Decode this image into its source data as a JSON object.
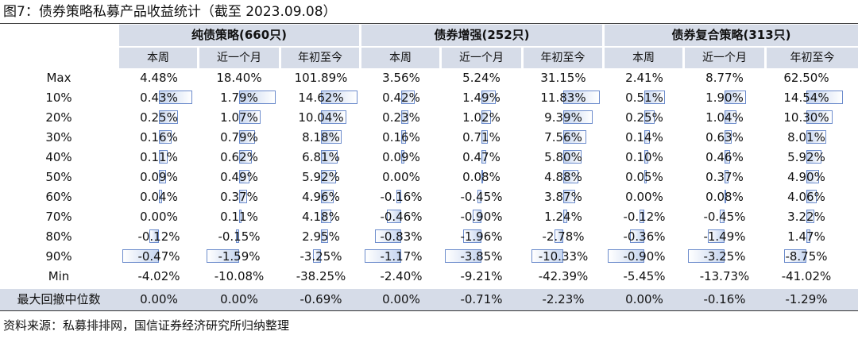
{
  "title": "图7：债券策略私募产品收益统计（截至 2023.09.08）",
  "groups": [
    {
      "label": "纯债策略(660只)"
    },
    {
      "label": "债券增强(252只)"
    },
    {
      "label": "债券复合策略(313只)"
    }
  ],
  "subheaders": [
    "本周",
    "近一个月",
    "年初至今",
    "本周",
    "近一个月",
    "年初至今",
    "本周",
    "近一个月",
    "年初至今"
  ],
  "rows": [
    {
      "label": "Max",
      "bars": false,
      "values": [
        "4.48%",
        "18.40%",
        "101.89%",
        "3.56%",
        "5.24%",
        "31.15%",
        "2.41%",
        "8.77%",
        "62.50%"
      ]
    },
    {
      "label": "10%",
      "bars": true,
      "values": [
        "0.43%",
        "1.79%",
        "14.62%",
        "0.42%",
        "1.49%",
        "11.83%",
        "0.51%",
        "1.90%",
        "14.54%"
      ]
    },
    {
      "label": "20%",
      "bars": true,
      "values": [
        "0.25%",
        "1.07%",
        "10.04%",
        "0.23%",
        "1.02%",
        "9.39%",
        "0.25%",
        "1.04%",
        "10.30%"
      ]
    },
    {
      "label": "30%",
      "bars": true,
      "values": [
        "0.16%",
        "0.79%",
        "8.18%",
        "0.16%",
        "0.71%",
        "7.56%",
        "0.14%",
        "0.63%",
        "8.01%"
      ]
    },
    {
      "label": "40%",
      "bars": true,
      "values": [
        "0.11%",
        "0.62%",
        "6.81%",
        "0.09%",
        "0.47%",
        "5.80%",
        "0.10%",
        "0.46%",
        "5.92%"
      ]
    },
    {
      "label": "50%",
      "bars": true,
      "values": [
        "0.09%",
        "0.49%",
        "5.92%",
        "0.00%",
        "0.08%",
        "4.88%",
        "0.05%",
        "0.37%",
        "4.90%"
      ]
    },
    {
      "label": "60%",
      "bars": true,
      "values": [
        "0.04%",
        "0.37%",
        "4.96%",
        "-0.16%",
        "-0.45%",
        "3.87%",
        "0.00%",
        "0.08%",
        "4.06%"
      ]
    },
    {
      "label": "70%",
      "bars": true,
      "values": [
        "0.00%",
        "0.11%",
        "4.18%",
        "-0.46%",
        "-0.90%",
        "1.24%",
        "-0.12%",
        "-0.45%",
        "3.22%"
      ]
    },
    {
      "label": "80%",
      "bars": true,
      "values": [
        "-0.12%",
        "-0.15%",
        "2.95%",
        "-0.83%",
        "-1.96%",
        "-2.78%",
        "-0.36%",
        "-1.49%",
        "1.47%"
      ]
    },
    {
      "label": "90%",
      "bars": true,
      "values": [
        "-0.47%",
        "-1.59%",
        "-3.25%",
        "-1.17%",
        "-3.85%",
        "-10.33%",
        "-0.90%",
        "-3.25%",
        "-8.75%"
      ]
    },
    {
      "label": "Min",
      "bars": false,
      "values": [
        "-4.02%",
        "-10.08%",
        "-38.25%",
        "-2.40%",
        "-9.21%",
        "-42.39%",
        "-5.45%",
        "-13.73%",
        "-41.02%"
      ]
    },
    {
      "label": "最大回撤中位数",
      "bars": false,
      "values": [
        "0.00%",
        "0.00%",
        "-0.69%",
        "0.00%",
        "-0.71%",
        "-2.23%",
        "0.00%",
        "-0.16%",
        "-1.29%"
      ]
    }
  ],
  "bar_color": "#6c8ccc",
  "header_bg": "#d6dce8",
  "source": "资料来源：私募排排网，国信证券经济研究所归纳整理"
}
